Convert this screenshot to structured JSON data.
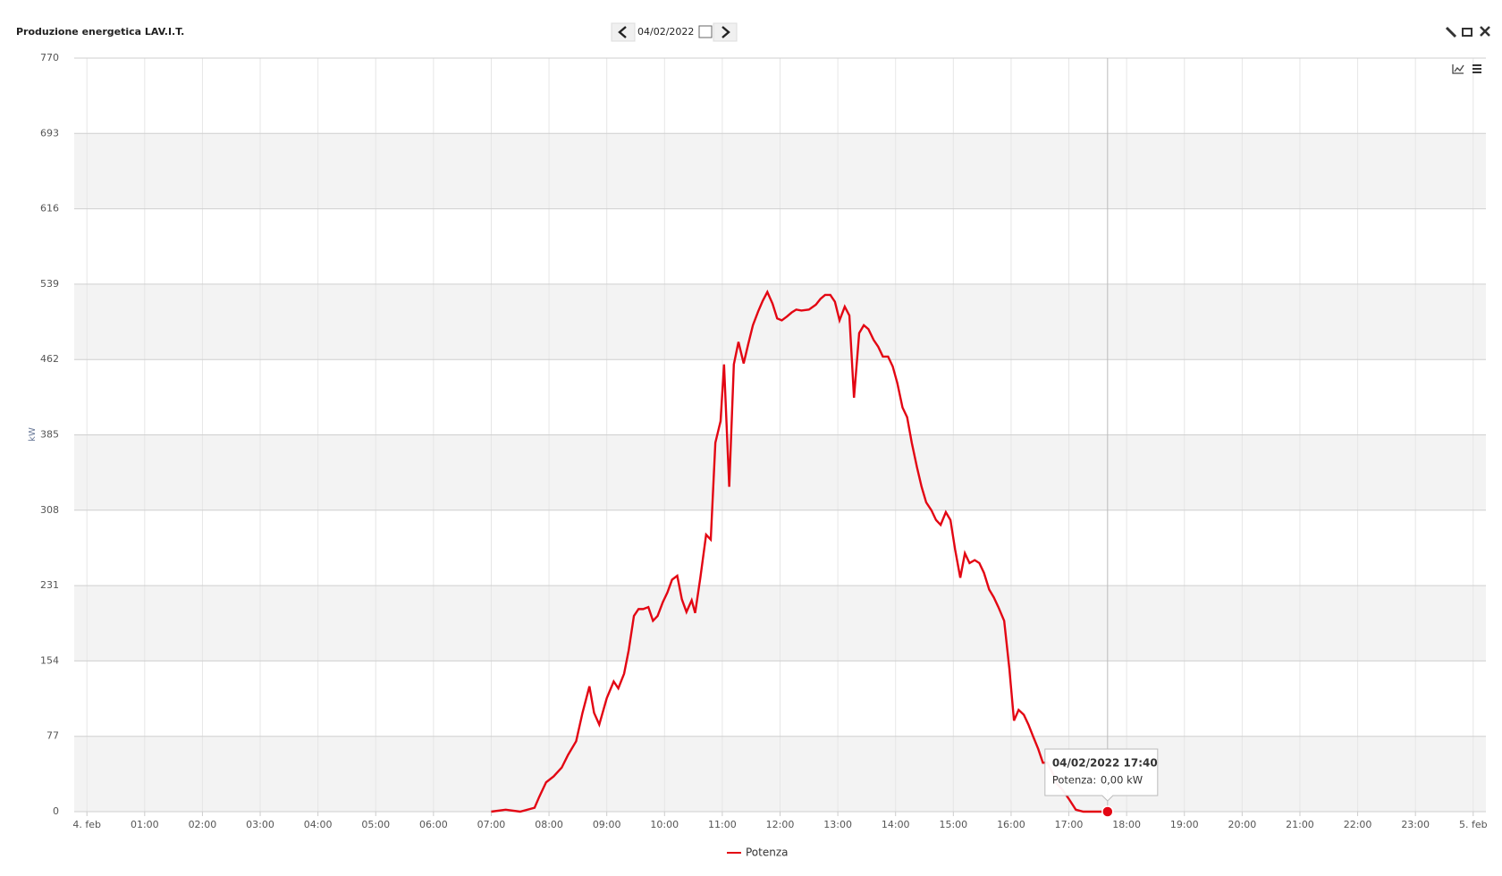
{
  "header": {
    "title": "Produzione energetica LAV.I.T.",
    "date": "04/02/2022"
  },
  "chart_data": {
    "type": "line",
    "y_label": "kW",
    "x": [
      7.0,
      7.25,
      7.5,
      7.75,
      7.83,
      7.95,
      8.08,
      8.22,
      8.33,
      8.47,
      8.58,
      8.7,
      8.78,
      8.87,
      9.0,
      9.12,
      9.2,
      9.3,
      9.38,
      9.47,
      9.55,
      9.63,
      9.72,
      9.8,
      9.88,
      9.97,
      10.05,
      10.13,
      10.22,
      10.3,
      10.38,
      10.47,
      10.53,
      10.62,
      10.72,
      10.8,
      10.88,
      10.97,
      11.03,
      11.12,
      11.2,
      11.28,
      11.37,
      11.45,
      11.53,
      11.62,
      11.7,
      11.78,
      11.87,
      11.95,
      12.03,
      12.12,
      12.2,
      12.28,
      12.37,
      12.5,
      12.62,
      12.7,
      12.78,
      12.87,
      12.95,
      13.03,
      13.12,
      13.2,
      13.28,
      13.37,
      13.45,
      13.53,
      13.62,
      13.7,
      13.78,
      13.87,
      13.95,
      14.03,
      14.12,
      14.2,
      14.28,
      14.37,
      14.45,
      14.53,
      14.62,
      14.7,
      14.78,
      14.87,
      14.95,
      15.03,
      15.12,
      15.2,
      15.28,
      15.37,
      15.45,
      15.53,
      15.62,
      15.7,
      15.78,
      15.88,
      15.97,
      16.05,
      16.13,
      16.22,
      16.3,
      16.38,
      16.47,
      16.55,
      16.63,
      16.72,
      16.8,
      16.88,
      17.0,
      17.12,
      17.25,
      17.67
    ],
    "series": [
      {
        "name": "Potenza",
        "color": "#e30613",
        "values": [
          0,
          2,
          0,
          4,
          15,
          30,
          36,
          45,
          58,
          72,
          101,
          128,
          101,
          89,
          116,
          133,
          126,
          141,
          165,
          200,
          207,
          207,
          209,
          195,
          200,
          214,
          224,
          237,
          241,
          217,
          204,
          216,
          203,
          239,
          283,
          278,
          377,
          399,
          457,
          332,
          457,
          480,
          458,
          478,
          497,
          511,
          522,
          531,
          519,
          504,
          502,
          506,
          510,
          513,
          512,
          513,
          518,
          524,
          528,
          528,
          521,
          502,
          516,
          507,
          423,
          489,
          497,
          493,
          482,
          475,
          465,
          465,
          455,
          438,
          413,
          403,
          377,
          352,
          332,
          316,
          308,
          298,
          293,
          306,
          298,
          268,
          239,
          264,
          254,
          257,
          254,
          244,
          227,
          219,
          209,
          195,
          146,
          93,
          104,
          99,
          89,
          77,
          64,
          50,
          50,
          39,
          28,
          23,
          13,
          2,
          0,
          0
        ]
      }
    ],
    "xlim": [
      -0.22,
      24.22
    ],
    "xticks": [
      {
        "value": 0,
        "label": "4. feb"
      },
      {
        "value": 1,
        "label": "01:00"
      },
      {
        "value": 2,
        "label": "02:00"
      },
      {
        "value": 3,
        "label": "03:00"
      },
      {
        "value": 4,
        "label": "04:00"
      },
      {
        "value": 5,
        "label": "05:00"
      },
      {
        "value": 6,
        "label": "06:00"
      },
      {
        "value": 7,
        "label": "07:00"
      },
      {
        "value": 8,
        "label": "08:00"
      },
      {
        "value": 9,
        "label": "09:00"
      },
      {
        "value": 10,
        "label": "10:00"
      },
      {
        "value": 11,
        "label": "11:00"
      },
      {
        "value": 12,
        "label": "12:00"
      },
      {
        "value": 13,
        "label": "13:00"
      },
      {
        "value": 14,
        "label": "14:00"
      },
      {
        "value": 15,
        "label": "15:00"
      },
      {
        "value": 16,
        "label": "16:00"
      },
      {
        "value": 17,
        "label": "17:00"
      },
      {
        "value": 18,
        "label": "18:00"
      },
      {
        "value": 19,
        "label": "19:00"
      },
      {
        "value": 20,
        "label": "20:00"
      },
      {
        "value": 21,
        "label": "21:00"
      },
      {
        "value": 22,
        "label": "22:00"
      },
      {
        "value": 23,
        "label": "23:00"
      },
      {
        "value": 24,
        "label": "5. feb"
      }
    ],
    "ylim": [
      0,
      770
    ],
    "yticks": [
      0,
      77,
      154,
      231,
      308,
      385,
      462,
      539,
      616,
      693,
      770
    ],
    "grid": true,
    "tooltip": {
      "title": "04/02/2022 17:40",
      "label": "Potenza:",
      "value": "0,00 kW"
    }
  }
}
